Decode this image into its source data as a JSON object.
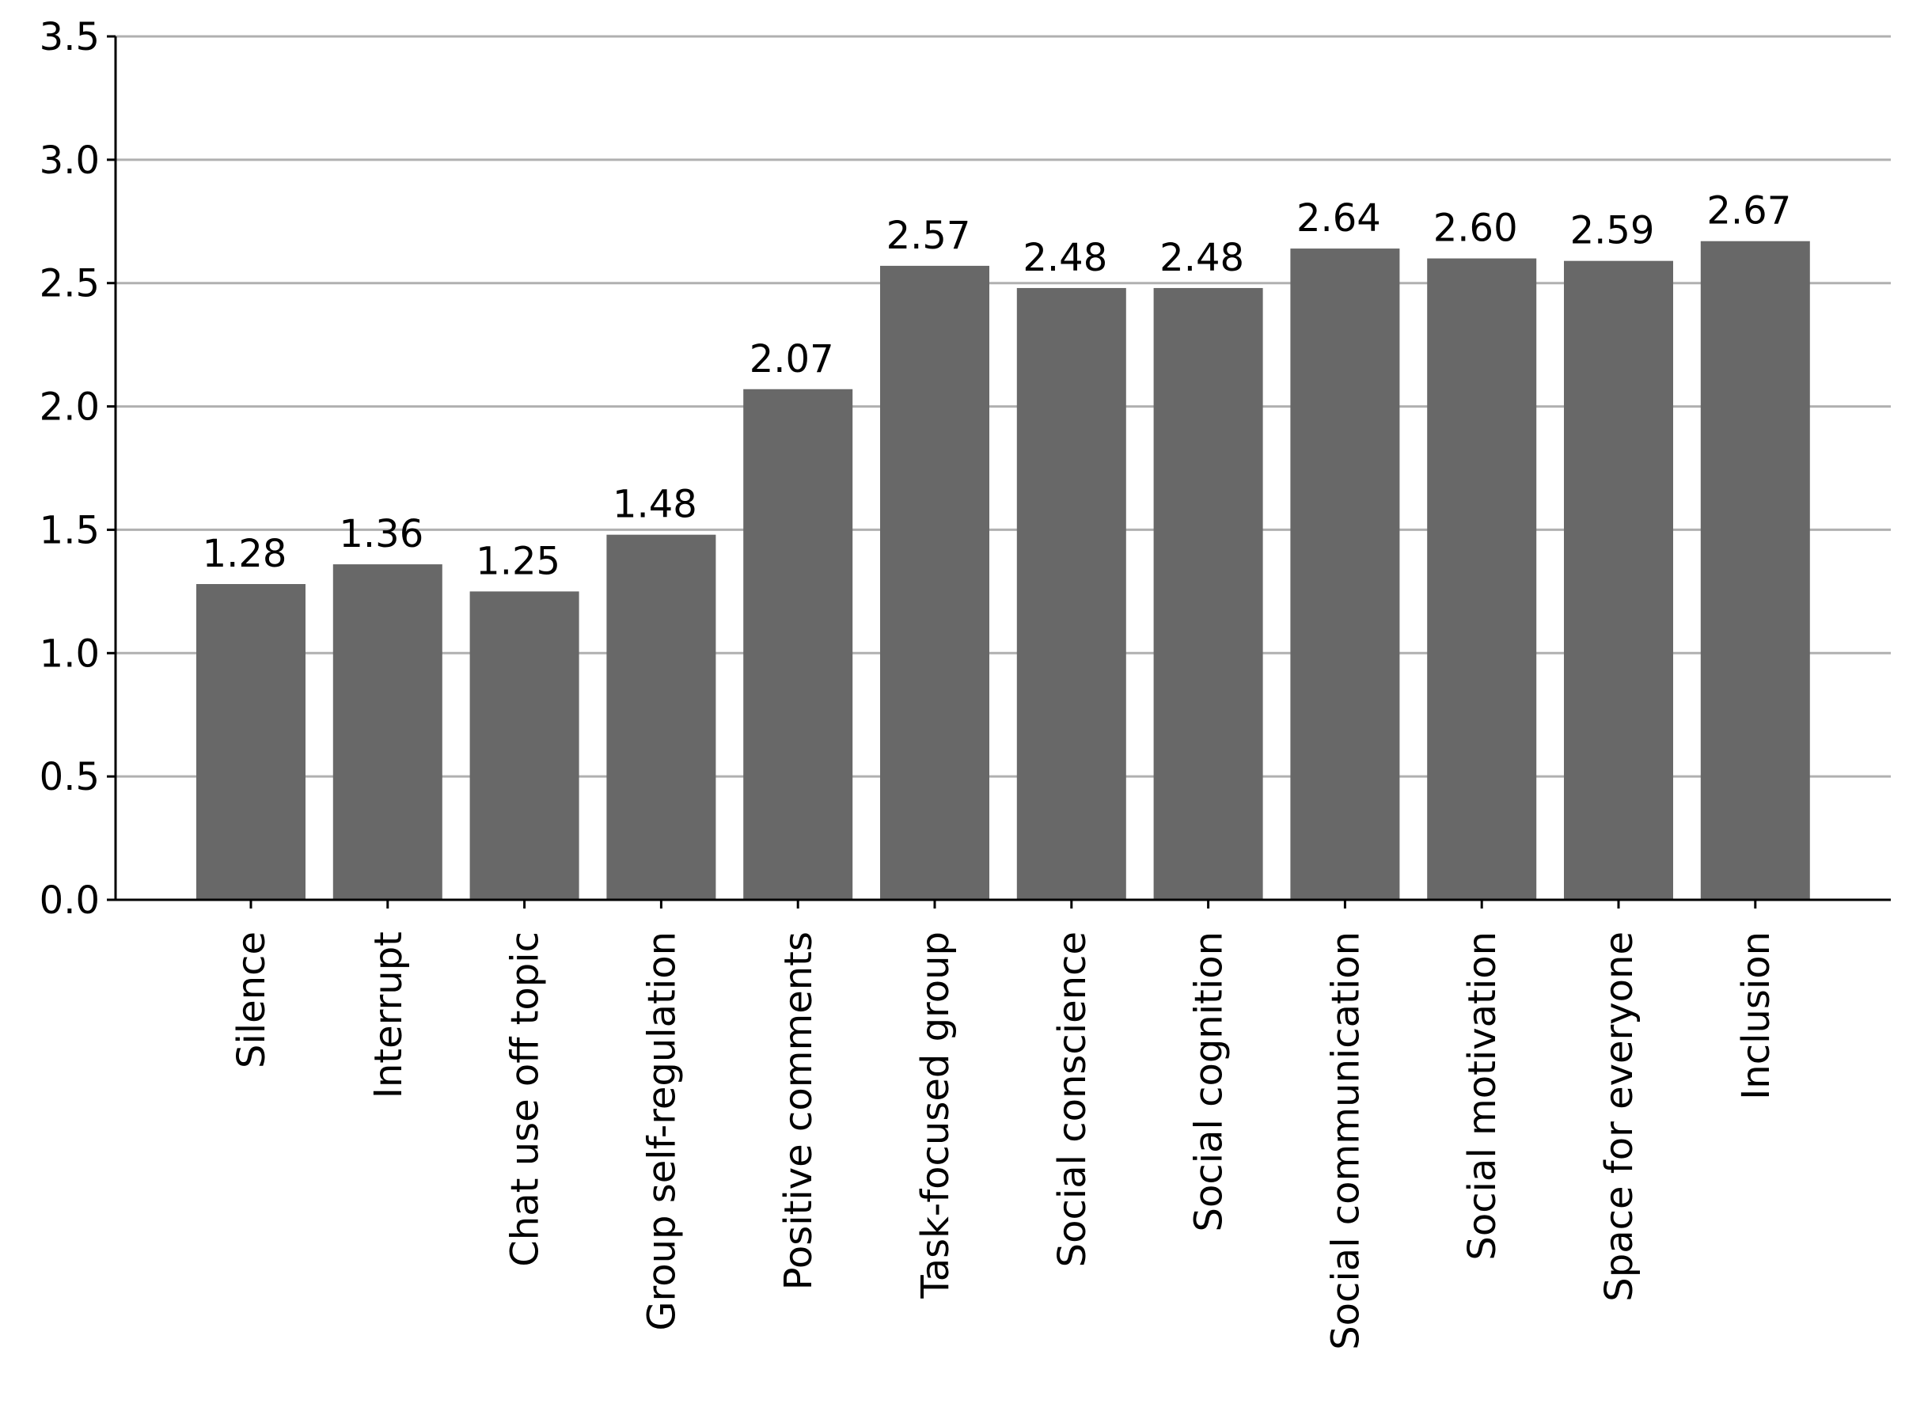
{
  "chart_data": {
    "type": "bar",
    "categories": [
      "Silence",
      "Interrupt",
      "Chat use off topic",
      "Group self-regulation",
      "Positive comments",
      "Task-focused group",
      "Social conscience",
      "Social cognition",
      "Social communication",
      "Social motivation",
      "Space for everyone",
      "Inclusion"
    ],
    "values": [
      1.28,
      1.36,
      1.25,
      1.48,
      2.07,
      2.57,
      2.48,
      2.48,
      2.64,
      2.6,
      2.59,
      2.67
    ],
    "value_labels": [
      "1.28",
      "1.36",
      "1.25",
      "1.48",
      "2.07",
      "2.57",
      "2.48",
      "2.48",
      "2.64",
      "2.60",
      "2.59",
      "2.67"
    ],
    "color": "#686868",
    "ylim": [
      0,
      3.5
    ],
    "yticks": [
      {
        "value": 0,
        "label": "0.0"
      },
      0.5,
      {
        "value": 1,
        "label": "1.0"
      },
      1.5,
      {
        "value": 2,
        "label": "2.0"
      },
      2.5,
      {
        "value": 3,
        "label": "3.0"
      },
      3.5
    ],
    "grid": true
  }
}
